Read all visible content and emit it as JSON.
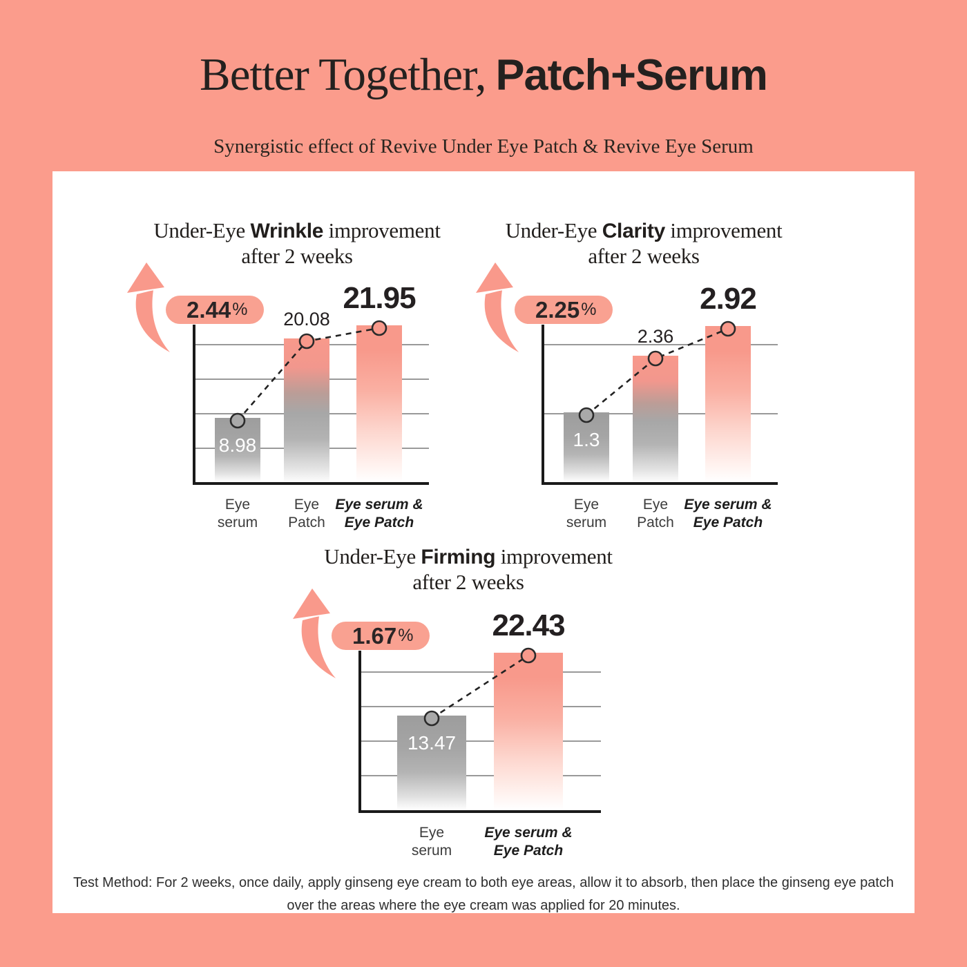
{
  "page": {
    "header": {
      "title_regular": "Better Together,",
      "title_bold": "Patch+Serum",
      "subtitle": "Synergistic effect of Revive Under Eye Patch & Revive Eye Serum"
    },
    "footer": {
      "test_method": "Test Method: For 2 weeks, once daily, apply ginseng eye cream to both eye areas, allow it to absorb, then place the ginseng eye patch over the areas where the eye cream was applied for 20 minutes."
    }
  },
  "colors": {
    "background": "#FB9C8C",
    "card": "#FFFFFF",
    "accent_salmon": "#F8998B",
    "badge_fill": "#F9A191",
    "bar_gray_top": "#9D9D9D",
    "gridline": "#999999",
    "axis": "#1A1A1A",
    "text_dark": "#242021",
    "text_light": "#FFFFFF"
  },
  "chart_data": [
    {
      "type": "bar",
      "title": {
        "prefix": "Under-Eye ",
        "keyword": "Wrinkle",
        "suffix": " improvement",
        "line2": "after 2 weeks"
      },
      "increase_badge": {
        "value": "2.44",
        "unit": "%"
      },
      "categories": [
        "Eye\nserum",
        "Eye\nPatch",
        "Eye serum &\nEye Patch"
      ],
      "values": [
        8.98,
        20.08,
        21.95
      ],
      "value_labels": [
        "8.98",
        "20.08",
        "21.95"
      ],
      "bar_styles": [
        "gray",
        "pink-gray",
        "pink"
      ],
      "value_label_styles": [
        "inside",
        "small",
        "big"
      ],
      "emphasized_categories": [
        false,
        false,
        true
      ],
      "ylim": [
        0,
        22.4
      ],
      "gridline_count": 4,
      "overlay": "dashed line connecting bar tops with circular markers"
    },
    {
      "type": "bar",
      "title": {
        "prefix": "Under-Eye ",
        "keyword": "Clarity",
        "suffix": " improvement",
        "line2": "after 2 weeks"
      },
      "increase_badge": {
        "value": "2.25",
        "unit": "%"
      },
      "categories": [
        "Eye\nserum",
        "Eye\nPatch",
        "Eye serum &\nEye Patch"
      ],
      "values": [
        1.3,
        2.36,
        2.92
      ],
      "value_labels": [
        "1.3",
        "2.36",
        "2.92"
      ],
      "bar_styles": [
        "gray",
        "pink-gray",
        "pink"
      ],
      "value_label_styles": [
        "inside",
        "small",
        "big"
      ],
      "emphasized_categories": [
        false,
        false,
        true
      ],
      "ylim": [
        0,
        3.0
      ],
      "gridline_count": 2,
      "overlay": "dashed line connecting bar tops with circular markers"
    },
    {
      "type": "bar",
      "title": {
        "prefix": "Under-Eye ",
        "keyword": "Firming",
        "suffix": " improvement",
        "line2": "after 2 weeks"
      },
      "increase_badge": {
        "value": "1.67",
        "unit": "%"
      },
      "categories": [
        "Eye\nserum",
        "Eye serum &\nEye Patch"
      ],
      "values": [
        13.47,
        22.43
      ],
      "value_labels": [
        "13.47",
        "22.43"
      ],
      "bar_styles": [
        "gray",
        "pink"
      ],
      "value_label_styles": [
        "inside",
        "big"
      ],
      "emphasized_categories": [
        false,
        true
      ],
      "ylim": [
        0,
        23.1
      ],
      "gridline_count": 4,
      "overlay": "dashed line connecting bar tops with circular markers"
    }
  ]
}
